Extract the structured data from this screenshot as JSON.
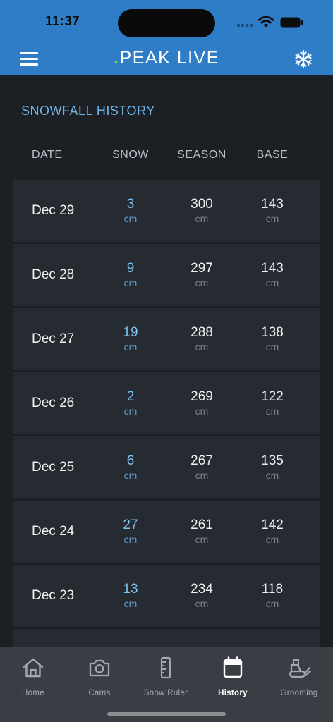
{
  "status": {
    "time": "11:37"
  },
  "header": {
    "logo_dot": ".",
    "logo_text": "PEAK LIVE"
  },
  "section_title": "SNOWFALL HISTORY",
  "columns": {
    "date": "DATE",
    "snow": "SNOW",
    "season": "SEASON",
    "base": "BASE"
  },
  "rows": [
    {
      "date": "Dec 29",
      "snow": "3",
      "snow_unit": "cm",
      "season": "300",
      "season_unit": "cm",
      "base": "143",
      "base_unit": "cm"
    },
    {
      "date": "Dec 28",
      "snow": "9",
      "snow_unit": "cm",
      "season": "297",
      "season_unit": "cm",
      "base": "143",
      "base_unit": "cm"
    },
    {
      "date": "Dec 27",
      "snow": "19",
      "snow_unit": "cm",
      "season": "288",
      "season_unit": "cm",
      "base": "138",
      "base_unit": "cm"
    },
    {
      "date": "Dec 26",
      "snow": "2",
      "snow_unit": "cm",
      "season": "269",
      "season_unit": "cm",
      "base": "122",
      "base_unit": "cm"
    },
    {
      "date": "Dec 25",
      "snow": "6",
      "snow_unit": "cm",
      "season": "267",
      "season_unit": "cm",
      "base": "135",
      "base_unit": "cm"
    },
    {
      "date": "Dec 24",
      "snow": "27",
      "snow_unit": "cm",
      "season": "261",
      "season_unit": "cm",
      "base": "142",
      "base_unit": "cm"
    },
    {
      "date": "Dec 23",
      "snow": "13",
      "snow_unit": "cm",
      "season": "234",
      "season_unit": "cm",
      "base": "118",
      "base_unit": "cm"
    }
  ],
  "tabs": [
    {
      "label": "Home",
      "icon": "home-icon"
    },
    {
      "label": "Cams",
      "icon": "camera-icon"
    },
    {
      "label": "Snow Ruler",
      "icon": "ruler-icon"
    },
    {
      "label": "History",
      "icon": "calendar-icon"
    },
    {
      "label": "Grooming",
      "icon": "snowcat-icon"
    }
  ],
  "colors": {
    "header_blue": "#2f7cc7",
    "accent_blue": "#7cc1ee",
    "logo_green": "#7fd34a",
    "background": "#1c1f24",
    "row_bg": "#262b31",
    "tabbar_bg": "#3a3e44"
  }
}
